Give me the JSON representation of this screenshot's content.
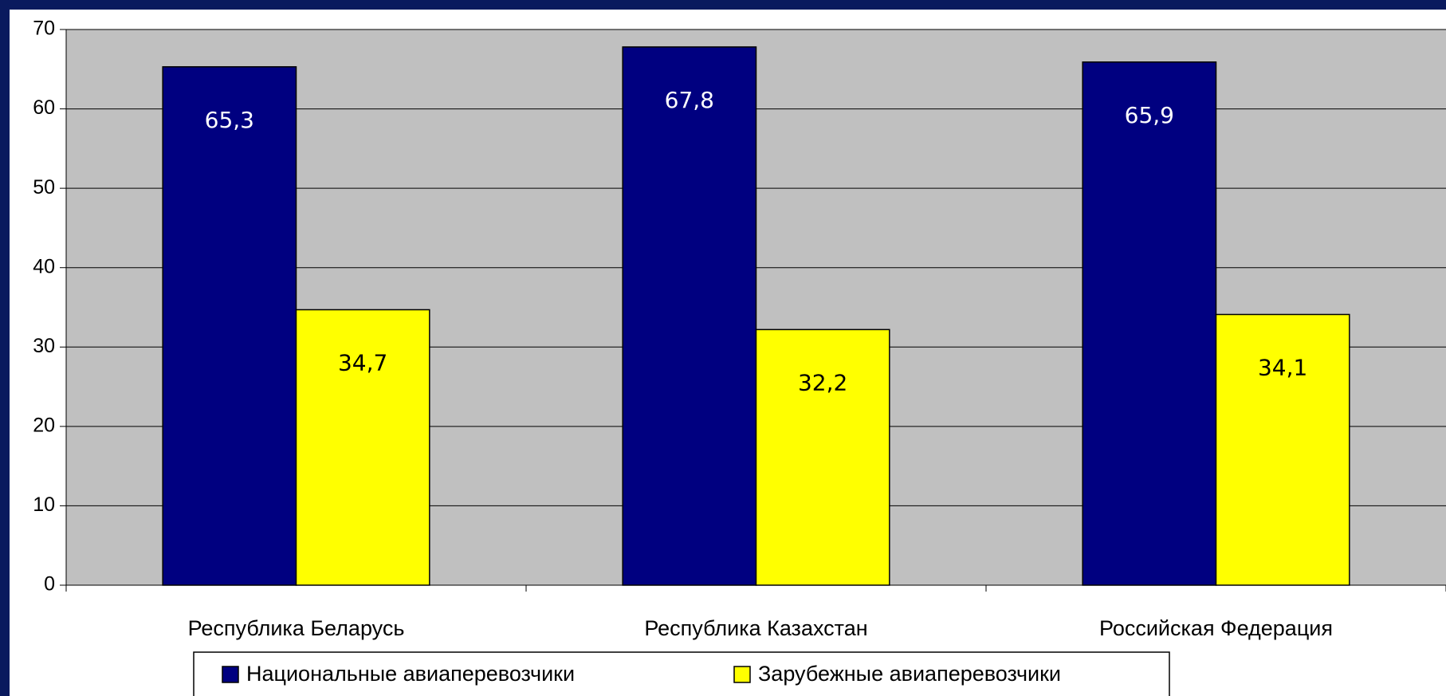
{
  "chart_data": {
    "type": "bar",
    "categories": [
      "Республика Беларусь",
      "Республика Казахстан",
      "Российская Федерация"
    ],
    "series": [
      {
        "name": "Национальные авиаперевозчики",
        "color": "#000080",
        "values": [
          65.3,
          67.8,
          65.9
        ],
        "value_labels": [
          "65,3",
          "67,8",
          "65,9"
        ]
      },
      {
        "name": "Зарубежные авиаперевозчики",
        "color": "#ffff00",
        "values": [
          34.7,
          32.2,
          34.1
        ],
        "value_labels": [
          "34,7",
          "32,2",
          "34,1"
        ]
      }
    ],
    "ylim": [
      0,
      70
    ],
    "yticks": [
      0,
      10,
      20,
      30,
      40,
      50,
      60,
      70
    ],
    "grid": true,
    "legend": "bottom"
  }
}
